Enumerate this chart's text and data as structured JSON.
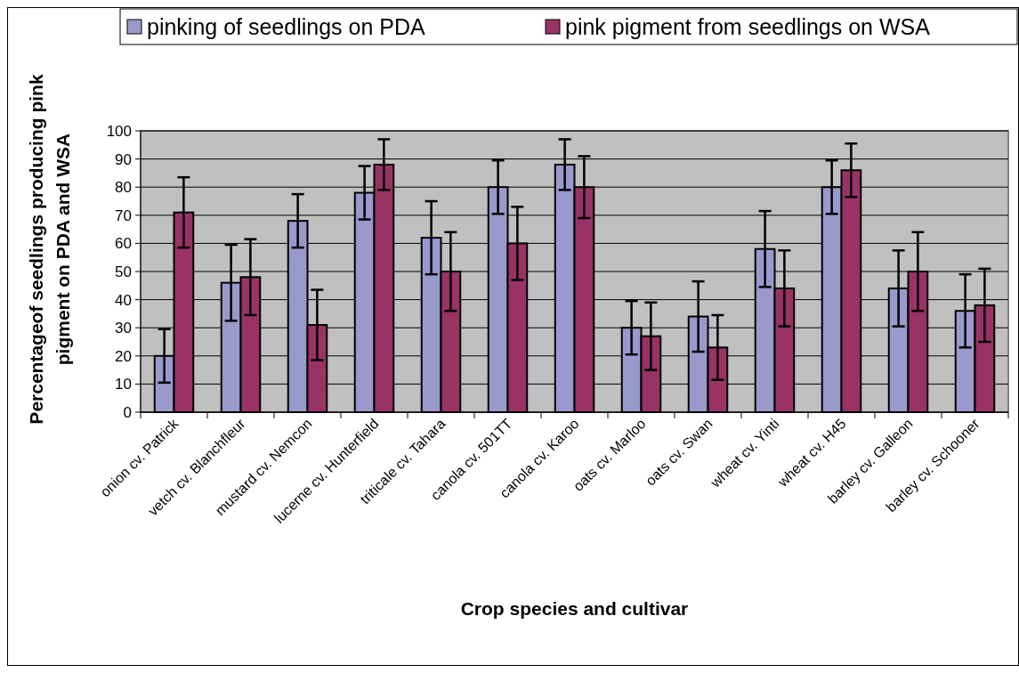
{
  "chart_data": {
    "type": "bar",
    "xlabel": "Crop species and cultivar",
    "ylabel": "Percentageof seedlings producing  pink\npigment on PDA and WSA",
    "categories": [
      "onion cv. Patrick",
      "vetch cv. Blanchfleur",
      "mustard cv. Nemcon",
      "lucerne cv. Hunterfield",
      "triticale cv. Tahara",
      "canola cv. 501TT",
      "canola cv. Karoo",
      "oats cv. Marloo",
      "oats cv. Swan",
      "wheat cv. Yinti",
      "wheat cv. H45",
      "barley cv. Galleon",
      "barley cv. Schooner"
    ],
    "series": [
      {
        "name": "pinking of seedlings on PDA",
        "color": "#9999cc",
        "values": [
          20,
          46,
          68,
          78,
          62,
          80,
          88,
          30,
          34,
          58,
          80,
          44,
          36
        ],
        "errors": [
          9.5,
          13.5,
          9.5,
          9.5,
          13,
          9.5,
          9,
          9.5,
          12.5,
          13.5,
          9.5,
          13.5,
          13
        ]
      },
      {
        "name": "pink pigment from seedlings on WSA",
        "color": "#993366",
        "values": [
          71,
          48,
          31,
          88,
          50,
          60,
          80,
          27,
          23,
          44,
          86,
          50,
          38
        ],
        "errors": [
          12.5,
          13.5,
          12.5,
          9,
          14,
          13,
          11,
          12,
          11.5,
          13.5,
          9.5,
          14,
          13
        ]
      }
    ],
    "ylim": [
      0,
      100
    ],
    "yticks": [
      0,
      10,
      20,
      30,
      40,
      50,
      60,
      70,
      80,
      90,
      100
    ],
    "grid": "y",
    "legend": "top"
  }
}
